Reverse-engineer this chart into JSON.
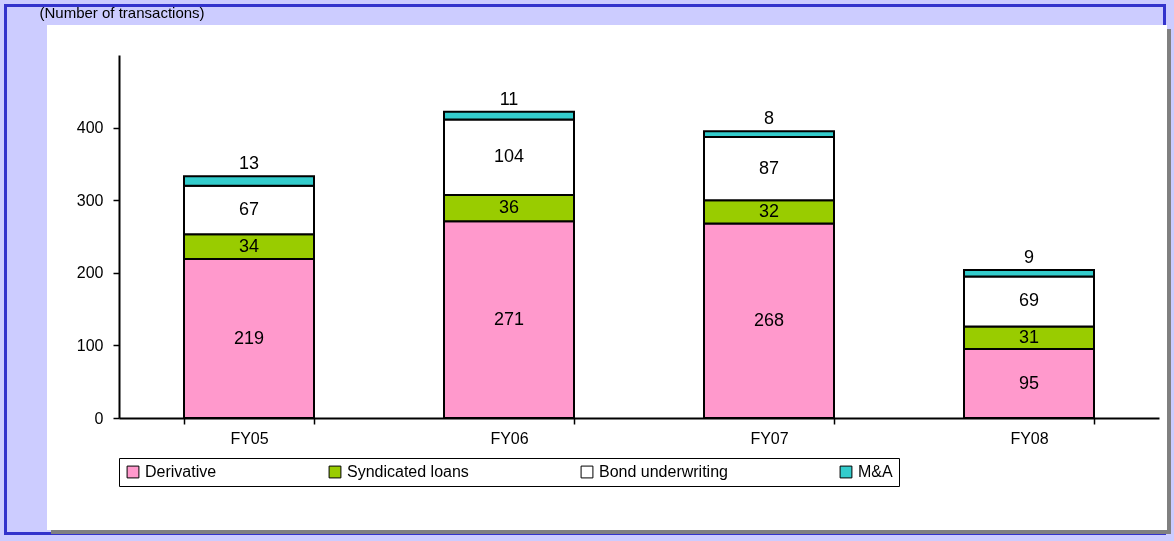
{
  "chart_data": {
    "type": "bar",
    "stacked": true,
    "ylabel": "(Number of transactions)",
    "categories": [
      "FY05",
      "FY06",
      "FY07",
      "FY08"
    ],
    "series": [
      {
        "name": "Derivative",
        "color": "#ff99cc",
        "values": [
          219,
          271,
          268,
          95
        ]
      },
      {
        "name": "Syndicated loans",
        "color": "#99cc00",
        "values": [
          34,
          36,
          32,
          31
        ]
      },
      {
        "name": "Bond underwriting",
        "color": "#ffffff",
        "values": [
          67,
          104,
          87,
          69
        ]
      },
      {
        "name": "M&A",
        "color": "#33cccc",
        "values": [
          13,
          11,
          8,
          9
        ]
      }
    ],
    "data_labels": true,
    "ylim": [
      0,
      500
    ],
    "yticks": [
      0,
      100,
      200,
      300,
      400
    ],
    "grid": false,
    "legend": "bottom"
  }
}
